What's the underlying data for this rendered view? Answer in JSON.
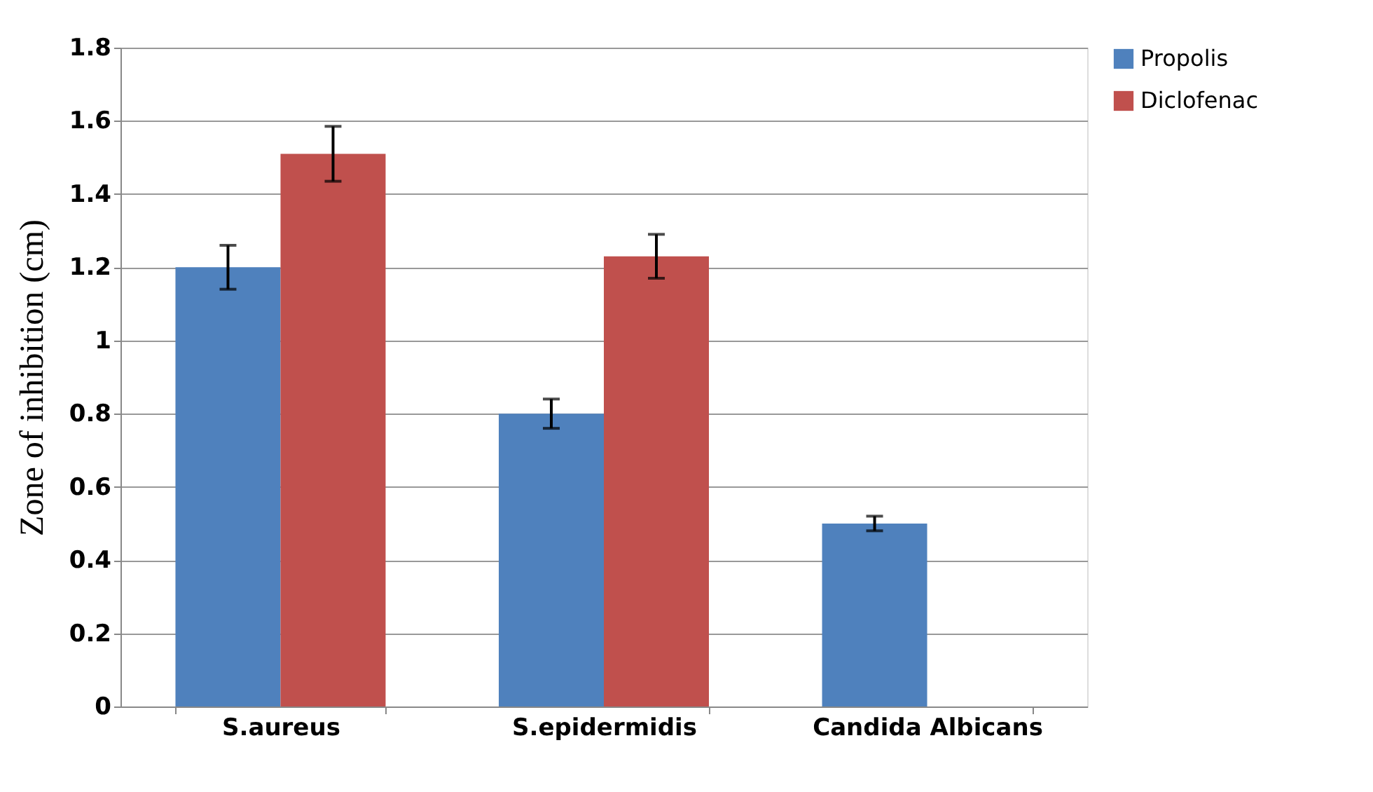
{
  "chart_data": {
    "type": "bar",
    "ylabel": "Zone of inhibition (cm)",
    "categories": [
      "S.aureus",
      "S.epidermidis",
      "Candida Albicans"
    ],
    "series": [
      {
        "name": "Propolis",
        "color": "#4f81bd",
        "values": [
          1.2,
          0.8,
          0.5
        ],
        "errors": [
          0.06,
          0.04,
          0.02
        ]
      },
      {
        "name": "Diclofenac",
        "color": "#c0504d",
        "values": [
          1.51,
          1.23,
          null
        ],
        "errors": [
          0.075,
          0.06,
          null
        ]
      }
    ],
    "ylim": [
      0,
      1.8
    ],
    "yticks": [
      0,
      0.2,
      0.4,
      0.6,
      0.8,
      1,
      1.2,
      1.4,
      1.6,
      1.8
    ],
    "grid": "y",
    "legend": "right"
  }
}
